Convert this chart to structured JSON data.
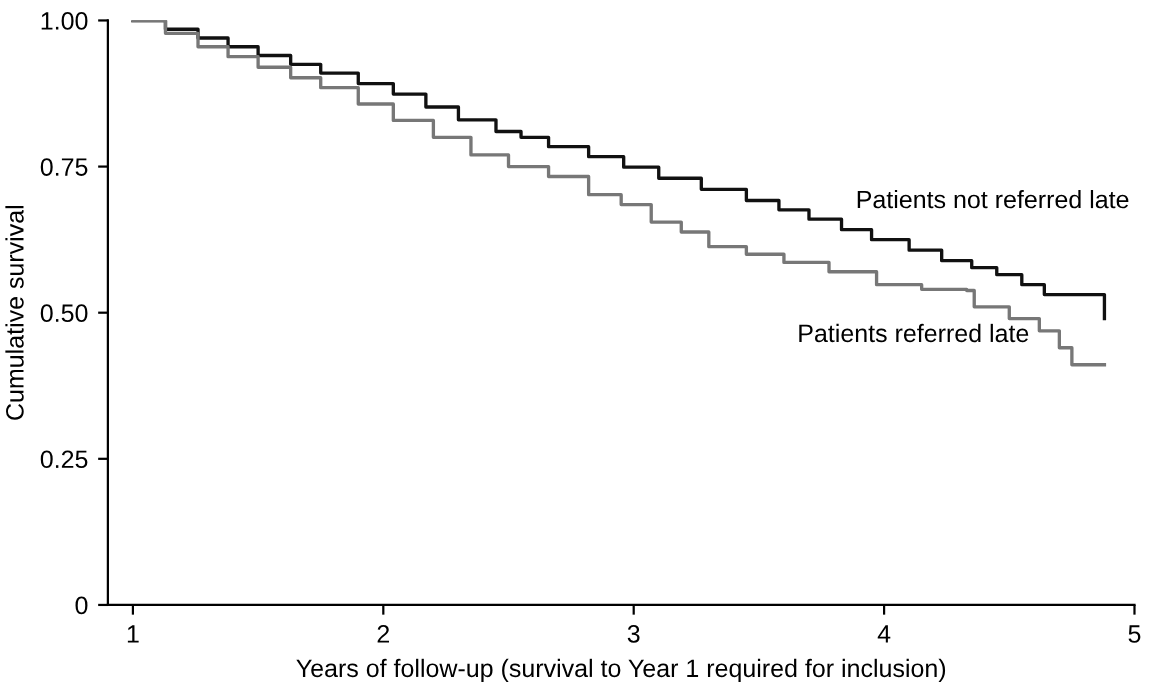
{
  "chart_data": {
    "type": "step",
    "xlabel": "Years of follow-up (survival to Year 1 required for inclusion)",
    "ylabel": "Cumulative survival",
    "xlim": [
      0.9,
      5
    ],
    "ylim": [
      0,
      1
    ],
    "xticks": [
      1,
      2,
      3,
      4,
      5
    ],
    "yticks": [
      {
        "value": 0,
        "label": "0"
      },
      {
        "value": 0.25,
        "label": "0.25"
      },
      {
        "value": 0.5,
        "label": "0.50"
      },
      {
        "value": 0.75,
        "label": "0.75"
      },
      {
        "value": 1,
        "label": "1.00"
      }
    ],
    "grid": false,
    "legend": false,
    "series": [
      {
        "name": "Patients not referred late",
        "color": "#111111",
        "x": [
          1,
          1.13,
          1.26,
          1.38,
          1.5,
          1.63,
          1.75,
          1.9,
          2.04,
          2.17,
          2.3,
          2.45,
          2.55,
          2.66,
          2.82,
          2.96,
          3.1,
          3.27,
          3.45,
          3.58,
          3.7,
          3.83,
          3.95,
          4.1,
          4.23,
          4.35,
          4.45,
          4.55,
          4.64,
          4.87,
          4.88
        ],
        "values": [
          1.0,
          0.985,
          0.97,
          0.955,
          0.94,
          0.925,
          0.91,
          0.892,
          0.874,
          0.852,
          0.83,
          0.81,
          0.8,
          0.784,
          0.767,
          0.749,
          0.73,
          0.711,
          0.692,
          0.676,
          0.66,
          0.642,
          0.625,
          0.607,
          0.589,
          0.577,
          0.565,
          0.548,
          0.531,
          0.531,
          0.49
        ]
      },
      {
        "name": "Patients referred late",
        "color": "#777777",
        "x": [
          1,
          1.13,
          1.26,
          1.38,
          1.5,
          1.63,
          1.75,
          1.9,
          2.04,
          2.2,
          2.35,
          2.5,
          2.66,
          2.82,
          2.95,
          3.07,
          3.19,
          3.3,
          3.45,
          3.6,
          3.78,
          3.97,
          4.15,
          4.33,
          4.36,
          4.5,
          4.62,
          4.7,
          4.75,
          4.88
        ],
        "values": [
          1.0,
          0.978,
          0.955,
          0.938,
          0.92,
          0.902,
          0.885,
          0.857,
          0.829,
          0.8,
          0.77,
          0.75,
          0.733,
          0.702,
          0.685,
          0.655,
          0.638,
          0.613,
          0.6,
          0.586,
          0.57,
          0.548,
          0.54,
          0.538,
          0.51,
          0.49,
          0.469,
          0.44,
          0.411,
          0.411
        ]
      }
    ]
  }
}
